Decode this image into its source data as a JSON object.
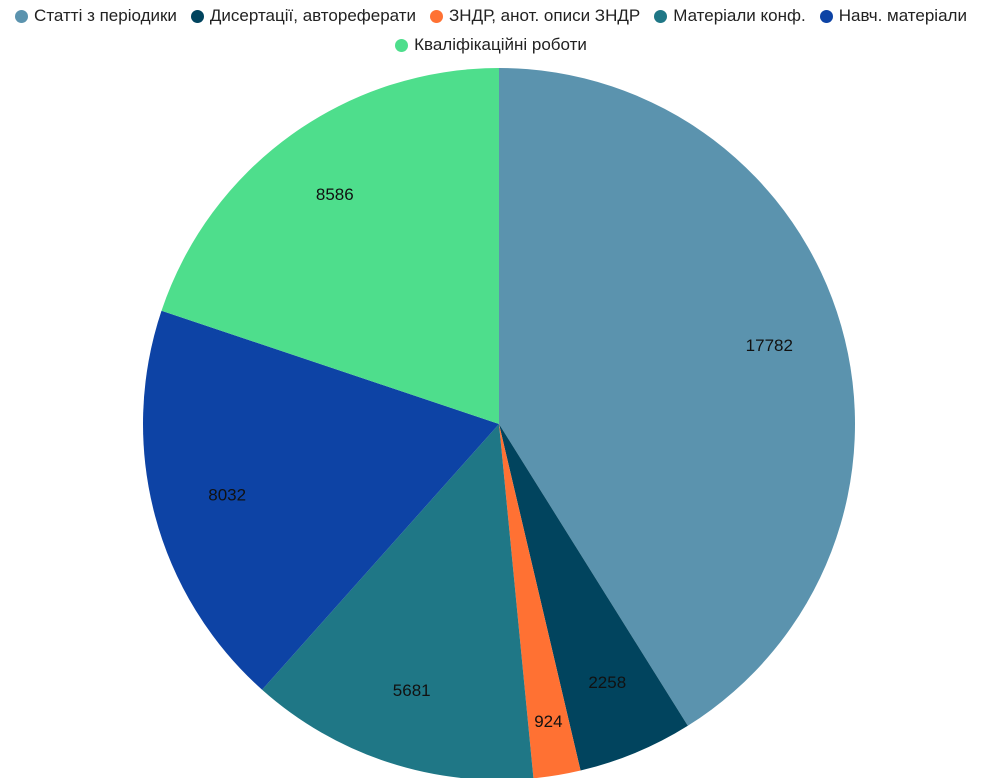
{
  "chart_data": {
    "type": "pie",
    "categories": [
      "Статті з періодики",
      "Дисертації, автореферати",
      "ЗНДР, анот. описи ЗНДР",
      "Матеріали конф.",
      "Навч. матеріали",
      "Кваліфікаційні роботи"
    ],
    "values": [
      17782,
      2258,
      924,
      5681,
      8032,
      8586
    ],
    "colors": [
      "#5b93ae",
      "#01445e",
      "#ff7133",
      "#1f7786",
      "#0d43a5",
      "#4ede8c"
    ]
  }
}
